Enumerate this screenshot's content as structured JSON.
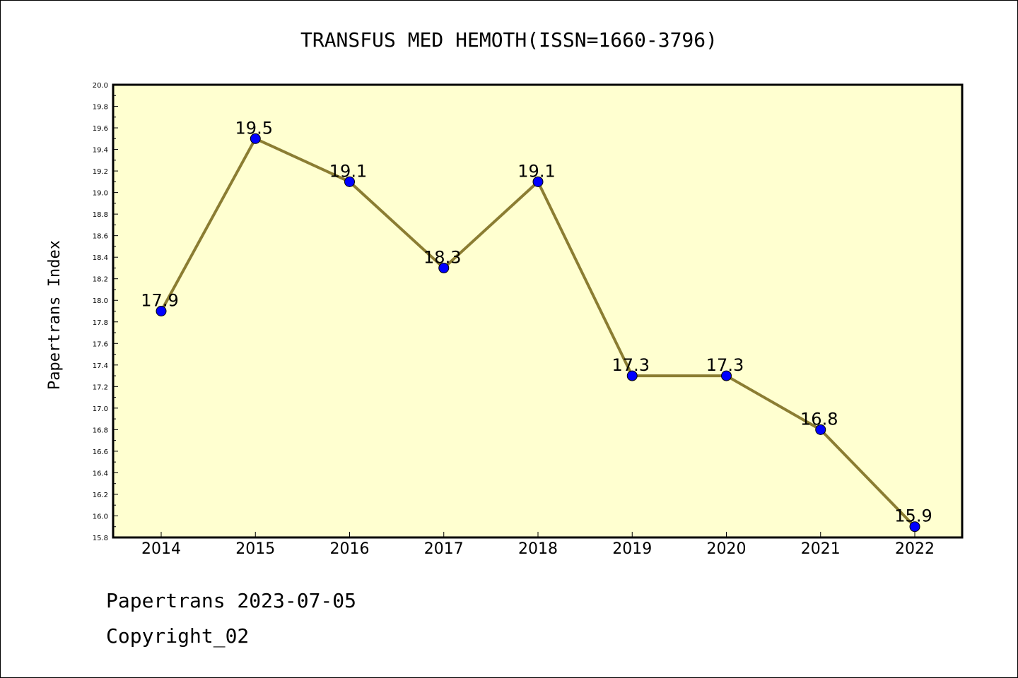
{
  "chart_data": {
    "type": "line",
    "title": "TRANSFUS MED HEMOTH(ISSN=1660-3796)",
    "ylabel": "Papertrans Index",
    "xlabel": "",
    "categories": [
      "2014",
      "2015",
      "2016",
      "2017",
      "2018",
      "2019",
      "2020",
      "2021",
      "2022"
    ],
    "values": [
      17.9,
      19.5,
      19.1,
      18.3,
      19.1,
      17.3,
      17.3,
      16.8,
      15.9
    ],
    "data_labels": [
      "17.9",
      "19.5",
      "19.1",
      "18.3",
      "19.1",
      "17.3",
      "17.3",
      "16.8",
      "15.9"
    ],
    "ylim": [
      15.8,
      20.0
    ],
    "yticks": [
      "15.8",
      "16.0",
      "16.2",
      "16.4",
      "16.6",
      "16.8",
      "17.0",
      "17.2",
      "17.4",
      "17.6",
      "17.8",
      "18.0",
      "18.2",
      "18.4",
      "18.6",
      "18.8",
      "19.0",
      "19.2",
      "19.4",
      "19.6",
      "19.8",
      "20.0"
    ],
    "grid": false,
    "colors": {
      "plot_background": "#ffffd0",
      "line": "#8b7d32",
      "marker": "#0000ff"
    }
  },
  "footer": {
    "source_line": "Papertrans 2023-07-05",
    "copyright_line": "Copyright_02"
  }
}
